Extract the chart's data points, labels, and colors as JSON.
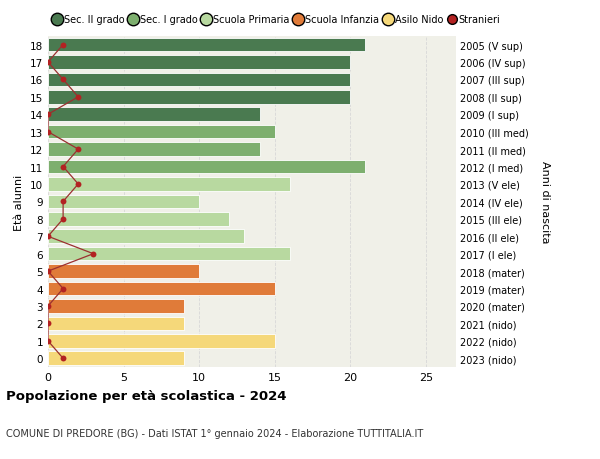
{
  "ages": [
    18,
    17,
    16,
    15,
    14,
    13,
    12,
    11,
    10,
    9,
    8,
    7,
    6,
    5,
    4,
    3,
    2,
    1,
    0
  ],
  "bar_values": [
    21,
    20,
    20,
    20,
    14,
    15,
    14,
    21,
    16,
    10,
    12,
    13,
    16,
    10,
    15,
    9,
    9,
    15,
    9
  ],
  "stranieri": [
    1,
    0,
    1,
    2,
    0,
    0,
    2,
    1,
    2,
    1,
    1,
    0,
    3,
    0,
    1,
    0,
    0,
    0,
    1
  ],
  "bar_colors": [
    "#4a7a50",
    "#4a7a50",
    "#4a7a50",
    "#4a7a50",
    "#4a7a50",
    "#7daf6e",
    "#7daf6e",
    "#7daf6e",
    "#b8d9a0",
    "#b8d9a0",
    "#b8d9a0",
    "#b8d9a0",
    "#b8d9a0",
    "#e07b39",
    "#e07b39",
    "#e07b39",
    "#f5d87a",
    "#f5d87a",
    "#f5d87a"
  ],
  "right_labels": [
    "2005 (V sup)",
    "2006 (IV sup)",
    "2007 (III sup)",
    "2008 (II sup)",
    "2009 (I sup)",
    "2010 (III med)",
    "2011 (II med)",
    "2012 (I med)",
    "2013 (V ele)",
    "2014 (IV ele)",
    "2015 (III ele)",
    "2016 (II ele)",
    "2017 (I ele)",
    "2018 (mater)",
    "2019 (mater)",
    "2020 (mater)",
    "2021 (nido)",
    "2022 (nido)",
    "2023 (nido)"
  ],
  "legend_labels": [
    "Sec. II grado",
    "Sec. I grado",
    "Scuola Primaria",
    "Scuola Infanzia",
    "Asilo Nido",
    "Stranieri"
  ],
  "legend_colors": [
    "#4a7a50",
    "#7daf6e",
    "#b8d9a0",
    "#e07b39",
    "#f5d87a",
    "#b22222"
  ],
  "ylabel": "Età alunni",
  "right_ylabel": "Anni di nascita",
  "title": "Popolazione per età scolastica - 2024",
  "subtitle": "COMUNE DI PREDORE (BG) - Dati ISTAT 1° gennaio 2024 - Elaborazione TUTTITALIA.IT",
  "xlim": [
    0,
    27
  ],
  "plot_bg": "#f0f0e8",
  "fig_bg": "#ffffff",
  "grid_color": "#d8d8d8"
}
